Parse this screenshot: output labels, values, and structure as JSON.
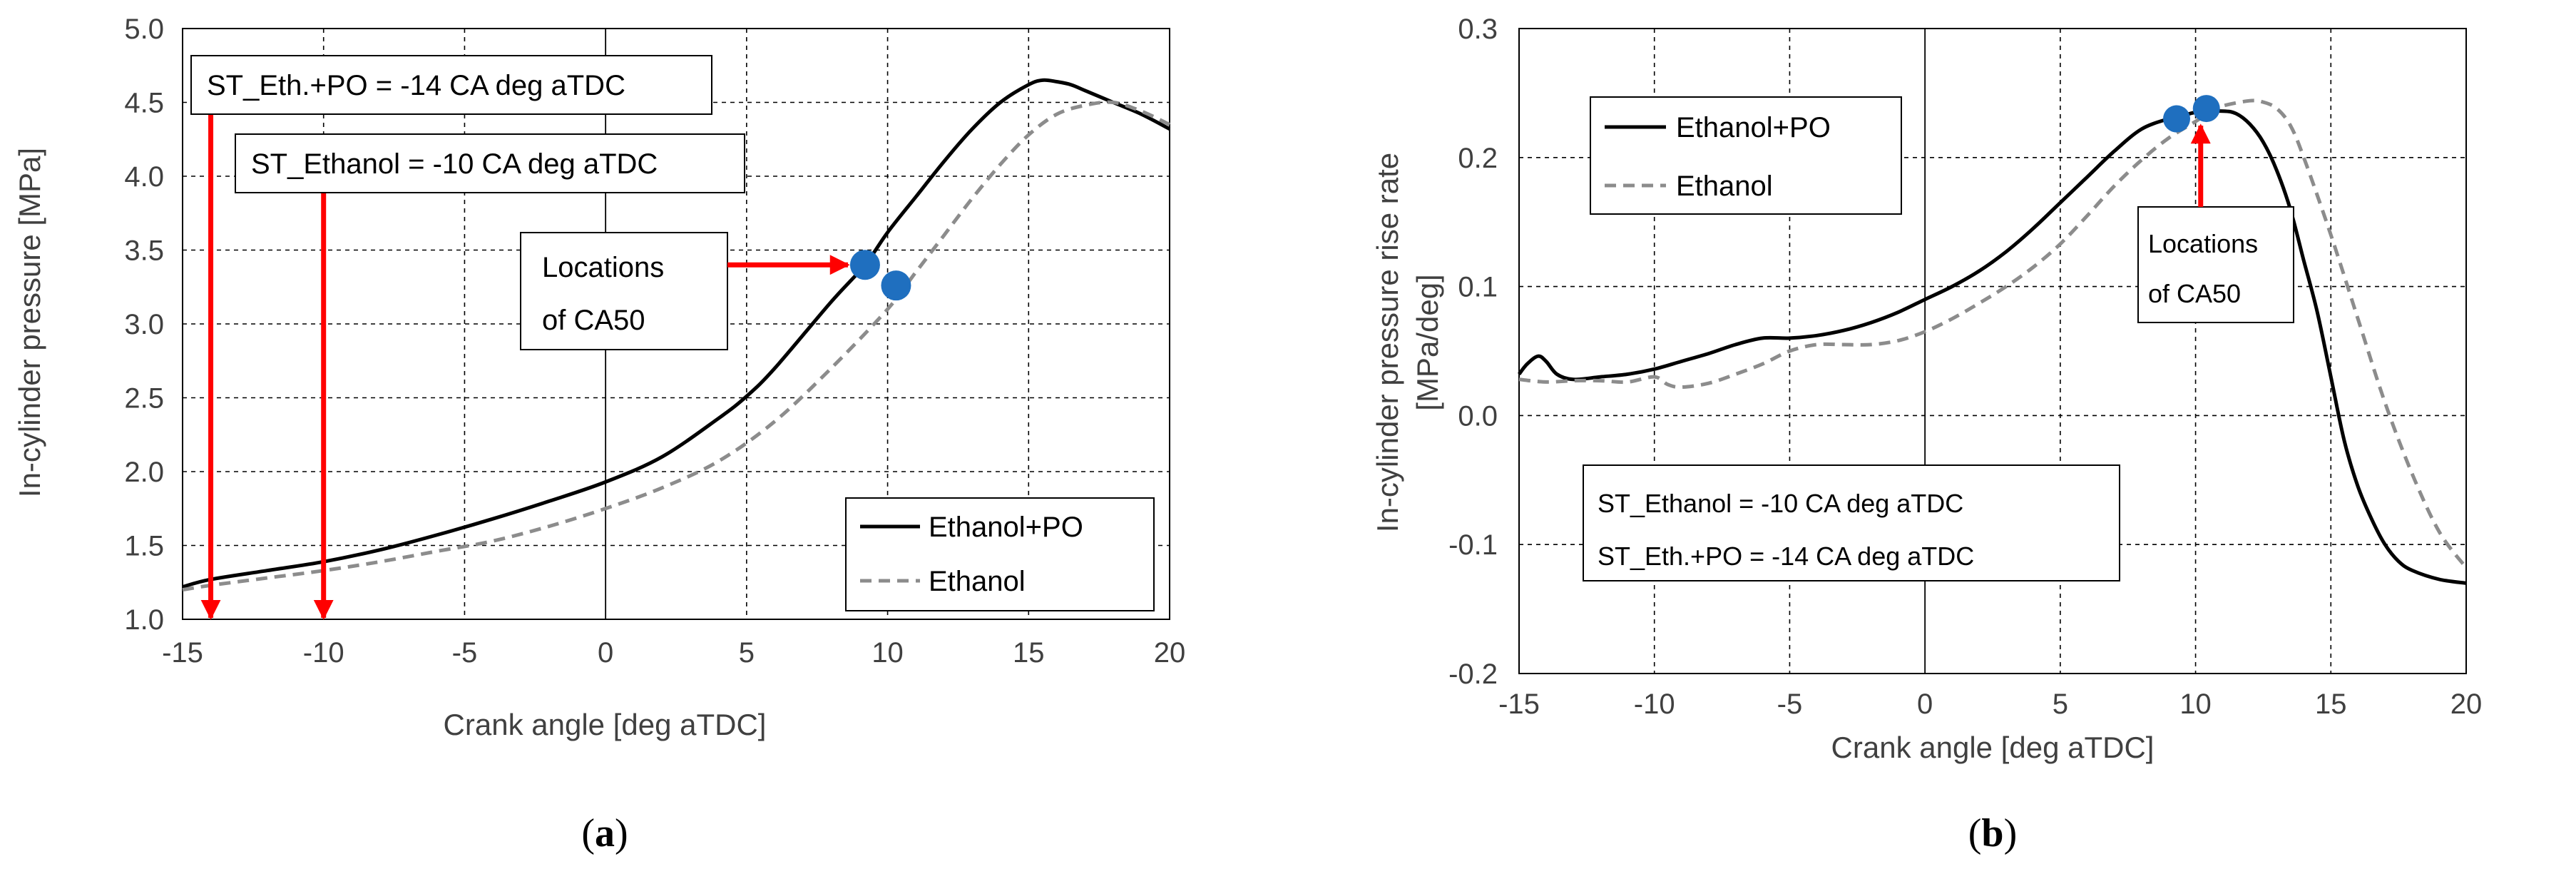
{
  "colors": {
    "ethanol_po": "#000000",
    "ethanol": "#8c8c8c",
    "arrow": "#ff0000",
    "marker": "#1f6fbf"
  },
  "chart_data": [
    {
      "type": "line",
      "panel_label": "(a)",
      "panel_letter": "a",
      "xlabel": "Crank angle [deg aTDC]",
      "ylabel": "In-cylinder pressure [MPa]",
      "xlim": [
        -15,
        20
      ],
      "ylim": [
        1.0,
        5.0
      ],
      "xticks": [
        -15,
        -10,
        -5,
        0,
        5,
        10,
        15,
        20
      ],
      "xtick_labels": [
        "-15",
        "-10",
        "-5",
        "0",
        "5",
        "10",
        "15",
        "20"
      ],
      "yticks": [
        1.0,
        1.5,
        2.0,
        2.5,
        3.0,
        3.5,
        4.0,
        4.5,
        5.0
      ],
      "ytick_labels": [
        "1.0",
        "1.5",
        "2.0",
        "2.5",
        "3.0",
        "3.5",
        "4.0",
        "4.5",
        "5.0"
      ],
      "grid": true,
      "legend_position": "bottom-right",
      "series": [
        {
          "name": "Ethanol+PO",
          "style": "solid",
          "x": [
            -15,
            -14,
            -12,
            -10,
            -8,
            -6,
            -4,
            -2,
            0,
            2,
            4,
            5,
            6,
            8,
            9.2,
            10,
            11,
            12,
            13,
            14,
            15,
            15.5,
            16,
            16.5,
            17,
            18,
            19,
            20
          ],
          "y": [
            1.22,
            1.27,
            1.33,
            1.39,
            1.47,
            1.57,
            1.68,
            1.8,
            1.93,
            2.1,
            2.36,
            2.51,
            2.7,
            3.15,
            3.4,
            3.62,
            3.86,
            4.1,
            4.32,
            4.5,
            4.62,
            4.65,
            4.64,
            4.62,
            4.58,
            4.5,
            4.42,
            4.32
          ]
        },
        {
          "name": "Ethanol",
          "style": "dashed",
          "x": [
            -15,
            -14,
            -12,
            -10,
            -8,
            -6,
            -4,
            -2,
            0,
            2,
            4,
            6,
            8,
            10,
            11,
            12,
            13,
            14,
            15,
            16,
            17,
            18,
            19,
            20
          ],
          "y": [
            1.2,
            1.23,
            1.28,
            1.33,
            1.39,
            1.46,
            1.53,
            1.63,
            1.75,
            1.89,
            2.07,
            2.34,
            2.7,
            3.1,
            3.35,
            3.6,
            3.85,
            4.08,
            4.28,
            4.42,
            4.48,
            4.5,
            4.44,
            4.35
          ]
        }
      ],
      "ca50_points": [
        {
          "series": "Ethanol+PO",
          "x": 9.2,
          "y": 3.4
        },
        {
          "series": "Ethanol",
          "x": 10.3,
          "y": 3.26
        }
      ],
      "annotations": [
        {
          "text": "ST_Eth.+PO = -14 CA deg aTDC",
          "arrow_x": -14,
          "arrow_to_y": 1.0
        },
        {
          "text": "ST_Ethanol = -10 CA deg aTDC",
          "arrow_x": -10,
          "arrow_to_y": 1.0
        },
        {
          "line1": "Locations",
          "line2": "of CA50"
        }
      ]
    },
    {
      "type": "line",
      "panel_label": "(b)",
      "panel_letter": "b",
      "xlabel": "Crank angle [deg aTDC]",
      "ylabel_line1": "In-cylinder pressure rise rate",
      "ylabel_line2": "[MPa/deg]",
      "xlim": [
        -15,
        20
      ],
      "ylim": [
        -0.2,
        0.3
      ],
      "xticks": [
        -15,
        -10,
        -5,
        0,
        5,
        10,
        15,
        20
      ],
      "xtick_labels": [
        "-15",
        "-10",
        "-5",
        "0",
        "5",
        "10",
        "15",
        "20"
      ],
      "yticks": [
        -0.2,
        -0.1,
        0.0,
        0.1,
        0.2,
        0.3
      ],
      "ytick_labels": [
        "-0.2",
        "-0.1",
        "0.0",
        "0.1",
        "0.2",
        "0.3"
      ],
      "grid": true,
      "legend_position": "top-left",
      "series": [
        {
          "name": "Ethanol+PO",
          "style": "solid",
          "x": [
            -15,
            -14.7,
            -14.3,
            -14,
            -13.6,
            -13,
            -12,
            -11,
            -10,
            -9,
            -8,
            -7,
            -6,
            -5,
            -4,
            -3,
            -2,
            -1,
            0,
            1,
            2,
            3,
            4,
            5,
            6,
            7,
            8,
            9,
            9.5,
            10,
            11,
            11.5,
            12,
            12.5,
            13,
            13.5,
            14,
            14.5,
            15,
            15.5,
            16,
            16.5,
            17,
            17.5,
            18,
            19,
            20
          ],
          "y": [
            0.032,
            0.04,
            0.046,
            0.042,
            0.032,
            0.028,
            0.03,
            0.032,
            0.036,
            0.042,
            0.048,
            0.055,
            0.06,
            0.06,
            0.062,
            0.066,
            0.072,
            0.08,
            0.09,
            0.1,
            0.112,
            0.127,
            0.145,
            0.165,
            0.185,
            0.205,
            0.222,
            0.23,
            0.232,
            0.235,
            0.236,
            0.234,
            0.226,
            0.212,
            0.19,
            0.16,
            0.12,
            0.08,
            0.03,
            -0.02,
            -0.055,
            -0.08,
            -0.1,
            -0.113,
            -0.12,
            -0.127,
            -0.13
          ]
        },
        {
          "name": "Ethanol",
          "style": "dashed",
          "x": [
            -15,
            -14,
            -13,
            -12,
            -11,
            -10,
            -9.5,
            -9,
            -8,
            -7,
            -6,
            -5,
            -4,
            -3,
            -2,
            -1,
            0,
            1,
            2,
            3,
            4,
            5,
            6,
            7,
            8,
            9,
            10,
            10.5,
            11,
            12,
            12.5,
            13,
            13.5,
            14,
            15,
            16,
            17,
            18,
            19,
            20
          ],
          "y": [
            0.028,
            0.026,
            0.027,
            0.027,
            0.026,
            0.03,
            0.024,
            0.022,
            0.025,
            0.032,
            0.04,
            0.05,
            0.055,
            0.055,
            0.055,
            0.058,
            0.065,
            0.075,
            0.087,
            0.1,
            0.115,
            0.133,
            0.155,
            0.178,
            0.198,
            0.215,
            0.228,
            0.235,
            0.24,
            0.244,
            0.243,
            0.238,
            0.225,
            0.2,
            0.14,
            0.075,
            0.01,
            -0.045,
            -0.09,
            -0.118
          ]
        }
      ],
      "ca50_points": [
        {
          "series": "Ethanol+PO",
          "x": 9.3,
          "y": 0.23
        },
        {
          "series": "Ethanol",
          "x": 10.4,
          "y": 0.238
        }
      ],
      "annotations": [
        {
          "line1": "Locations",
          "line2": "of CA50"
        },
        {
          "text": "ST_Ethanol = -10 CA deg aTDC"
        },
        {
          "text": "ST_Eth.+PO = -14 CA deg aTDC"
        }
      ]
    }
  ]
}
